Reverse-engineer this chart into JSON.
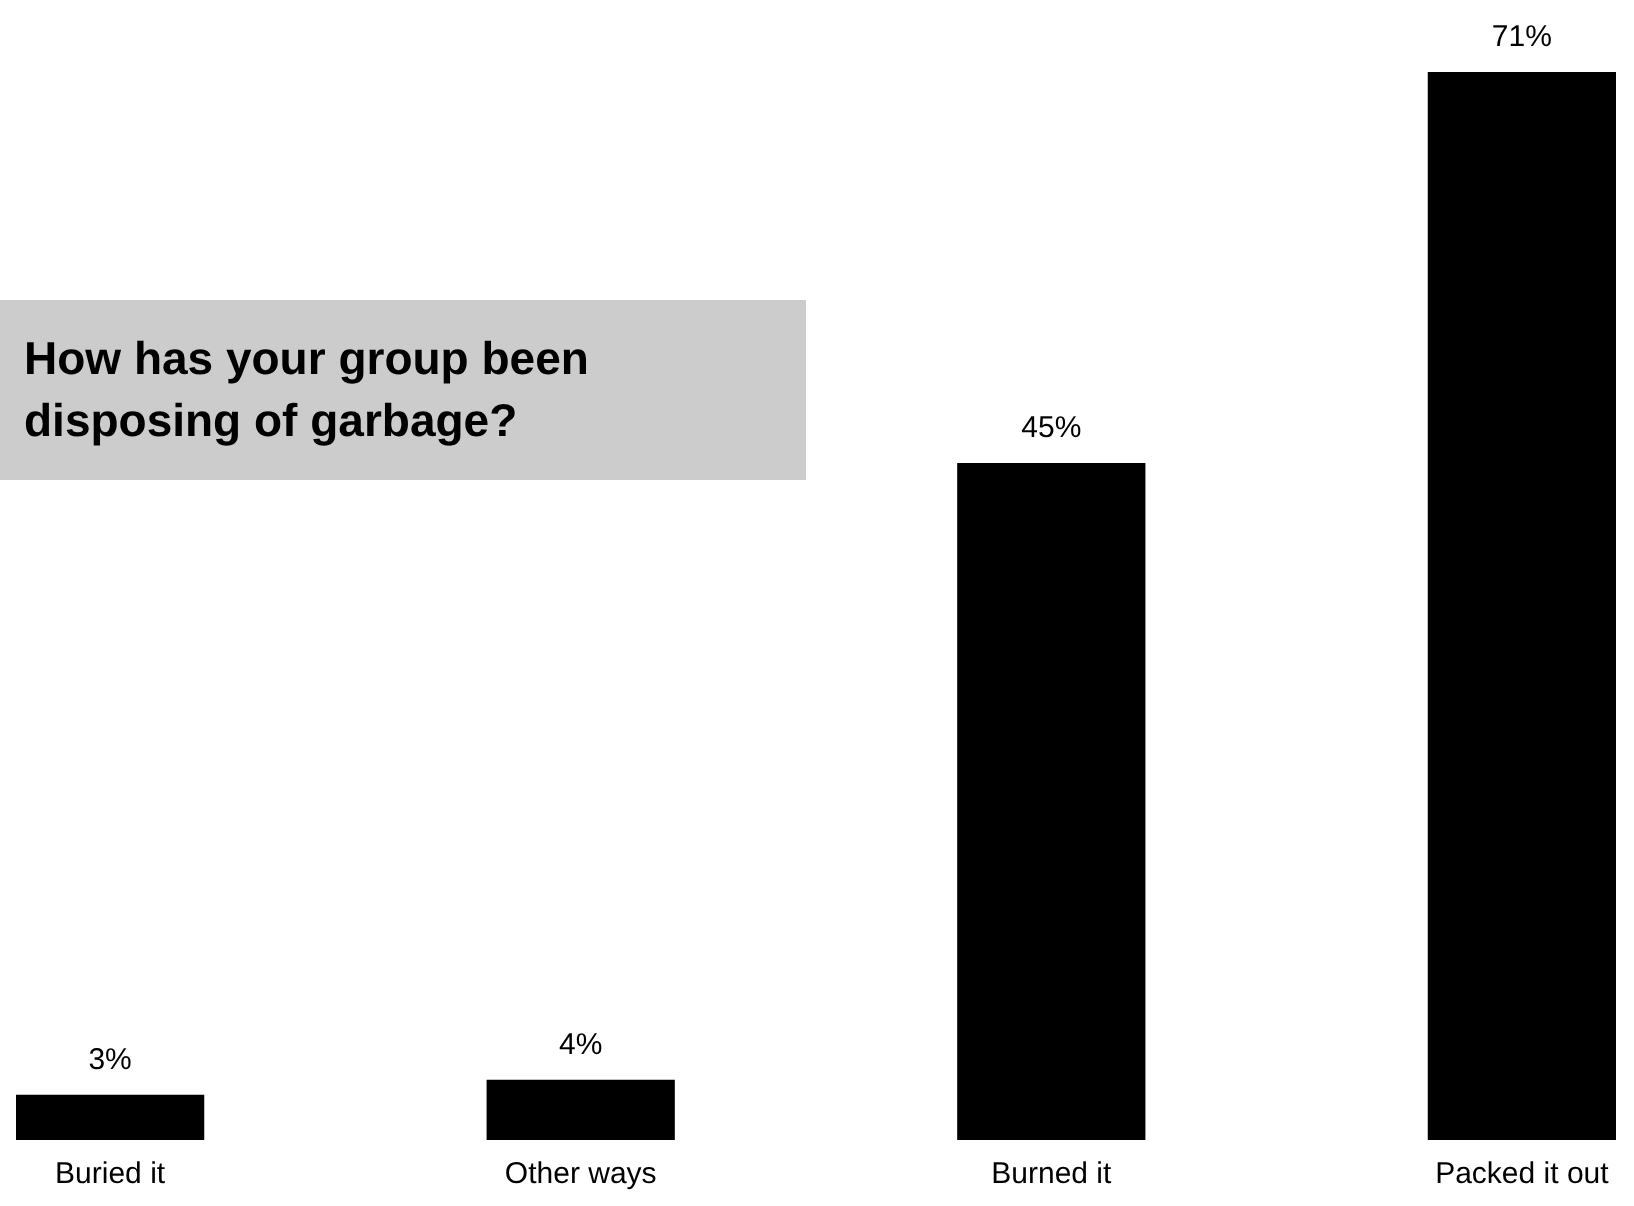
{
  "chart_data": {
    "type": "bar",
    "title": "How has your group been disposing of garbage?",
    "categories": [
      "Buried it",
      "Other ways",
      "Burned it",
      "Packed it out"
    ],
    "values": [
      3,
      4,
      45,
      71
    ],
    "value_labels": [
      "3%",
      "4%",
      "45%",
      "71%"
    ],
    "color": "#000000"
  }
}
